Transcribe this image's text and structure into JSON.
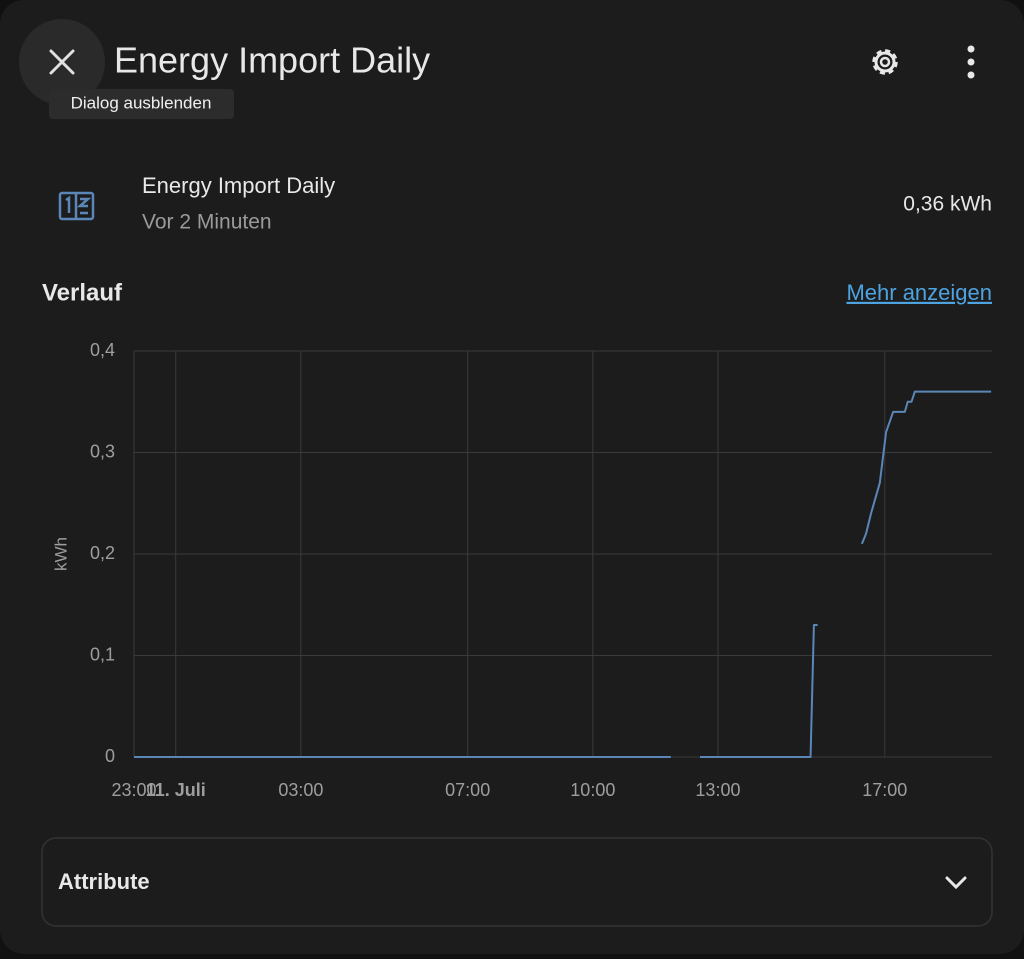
{
  "header": {
    "title": "Energy Import Daily",
    "tooltip": "Dialog ausblenden"
  },
  "entity": {
    "name": "Energy Import Daily",
    "last_changed": "Vor 2 Minuten",
    "state": "0,36 kWh"
  },
  "history": {
    "title": "Verlauf",
    "more_link": "Mehr anzeigen"
  },
  "chart_data": {
    "type": "line",
    "y_label": "kWh",
    "color": "#5b86b8",
    "grid": true,
    "x": [
      -1,
      11.87,
      12.2,
      12.57,
      15.22,
      15.3,
      15.39,
      16,
      16.45,
      16.55,
      16.67,
      16.88,
      17.03,
      17.2,
      17.48,
      17.55,
      17.64,
      17.72,
      19.55
    ],
    "values": [
      0,
      0,
      null,
      0,
      0,
      0.13,
      0.13,
      null,
      0.21,
      0.22,
      0.24,
      0.27,
      0.32,
      0.34,
      0.34,
      0.35,
      0.35,
      0.36,
      0.36
    ],
    "xlim": [
      -1,
      19.57
    ],
    "xticks": [
      {
        "value": -1,
        "label": "23:00"
      },
      {
        "value": 0,
        "label": "11. Juli"
      },
      {
        "value": 3,
        "label": "03:00"
      },
      {
        "value": 7,
        "label": "07:00"
      },
      {
        "value": 10,
        "label": "10:00"
      },
      {
        "value": 13,
        "label": "13:00"
      },
      {
        "value": 17,
        "label": "17:00"
      }
    ],
    "ylim": [
      0,
      0.4
    ],
    "yticks": [
      0,
      {
        "value": 0.1,
        "label": "0,1"
      },
      {
        "value": 0.2,
        "label": "0,2"
      },
      {
        "value": 0.3,
        "label": "0,3"
      },
      {
        "value": 0.4,
        "label": "0,4"
      }
    ]
  },
  "attributes": {
    "title": "Attribute"
  }
}
